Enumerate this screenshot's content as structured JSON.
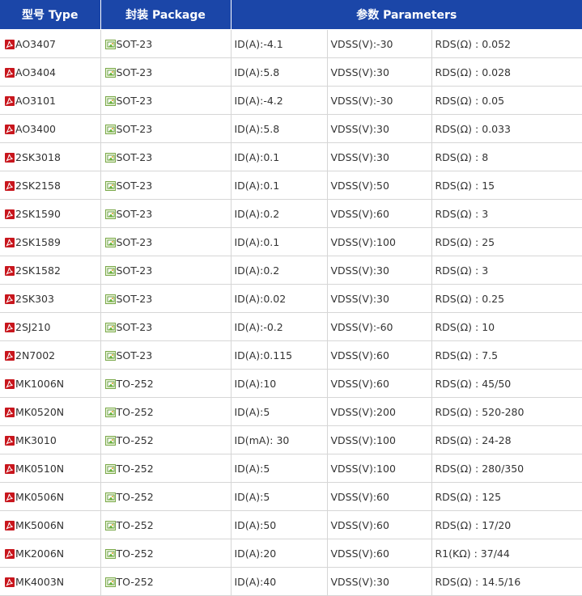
{
  "header": {
    "col_type": "型号 Type",
    "col_package": "封装 Package",
    "col_parameters": "参数 Parameters"
  },
  "icons": {
    "type_icon": "pdf-icon",
    "package_icon": "package-image-icon"
  },
  "colors": {
    "header_bg": "#1b46a8",
    "header_text": "#ffffff",
    "pdf_red": "#c8161d",
    "grid": "#d6d6d6"
  },
  "rows": [
    {
      "type": "AO3407",
      "package": "SOT-23",
      "id": "ID(A):-4.1",
      "vdss": "VDSS(V):-30",
      "rds": "RDS(Ω) : 0.052"
    },
    {
      "type": "AO3404",
      "package": "SOT-23",
      "id": "ID(A):5.8",
      "vdss": "VDSS(V):30",
      "rds": "RDS(Ω) : 0.028"
    },
    {
      "type": "AO3101",
      "package": "SOT-23",
      "id": "ID(A):-4.2",
      "vdss": "VDSS(V):-30",
      "rds": "RDS(Ω) : 0.05"
    },
    {
      "type": "AO3400",
      "package": "SOT-23",
      "id": "ID(A):5.8",
      "vdss": "VDSS(V):30",
      "rds": "RDS(Ω) : 0.033"
    },
    {
      "type": "2SK3018",
      "package": "SOT-23",
      "id": "ID(A):0.1",
      "vdss": "VDSS(V):30",
      "rds": "RDS(Ω) : 8"
    },
    {
      "type": "2SK2158",
      "package": "SOT-23",
      "id": "ID(A):0.1",
      "vdss": "VDSS(V):50",
      "rds": "RDS(Ω) : 15"
    },
    {
      "type": "2SK1590",
      "package": "SOT-23",
      "id": "ID(A):0.2",
      "vdss": "VDSS(V):60",
      "rds": "RDS(Ω) : 3"
    },
    {
      "type": "2SK1589",
      "package": "SOT-23",
      "id": "ID(A):0.1",
      "vdss": "VDSS(V):100",
      "rds": "RDS(Ω) : 25"
    },
    {
      "type": "2SK1582",
      "package": "SOT-23",
      "id": "ID(A):0.2",
      "vdss": "VDSS(V):30",
      "rds": "RDS(Ω) : 3"
    },
    {
      "type": "2SK303",
      "package": "SOT-23",
      "id": "ID(A):0.02",
      "vdss": "VDSS(V):30",
      "rds": "RDS(Ω) : 0.25"
    },
    {
      "type": "2SJ210",
      "package": "SOT-23",
      "id": "ID(A):-0.2",
      "vdss": "VDSS(V):-60",
      "rds": "RDS(Ω) : 10"
    },
    {
      "type": "2N7002",
      "package": "SOT-23",
      "id": "ID(A):0.115",
      "vdss": "VDSS(V):60",
      "rds": "RDS(Ω) : 7.5"
    },
    {
      "type": "MK1006N",
      "package": "TO-252",
      "id": "ID(A):10",
      "vdss": "VDSS(V):60",
      "rds": "RDS(Ω) : 45/50"
    },
    {
      "type": "MK0520N",
      "package": "TO-252",
      "id": "ID(A):5",
      "vdss": "VDSS(V):200",
      "rds": "RDS(Ω) : 520-280"
    },
    {
      "type": "MK3010",
      "package": "TO-252",
      "id": "ID(mA): 30",
      "vdss": "VDSS(V):100",
      "rds": "RDS(Ω) : 24-28"
    },
    {
      "type": "MK0510N",
      "package": "TO-252",
      "id": "ID(A):5",
      "vdss": "VDSS(V):100",
      "rds": "RDS(Ω) : 280/350"
    },
    {
      "type": "MK0506N",
      "package": "TO-252",
      "id": "ID(A):5",
      "vdss": "VDSS(V):60",
      "rds": "RDS(Ω) : 125"
    },
    {
      "type": "MK5006N",
      "package": "TO-252",
      "id": "ID(A):50",
      "vdss": "VDSS(V):60",
      "rds": "RDS(Ω) : 17/20"
    },
    {
      "type": "MK2006N",
      "package": "TO-252",
      "id": "ID(A):20",
      "vdss": "VDSS(V):60",
      "rds": "R1(KΩ) : 37/44"
    },
    {
      "type": "MK4003N",
      "package": "TO-252",
      "id": "ID(A):40",
      "vdss": "VDSS(V):30",
      "rds": "RDS(Ω) : 14.5/16"
    }
  ]
}
